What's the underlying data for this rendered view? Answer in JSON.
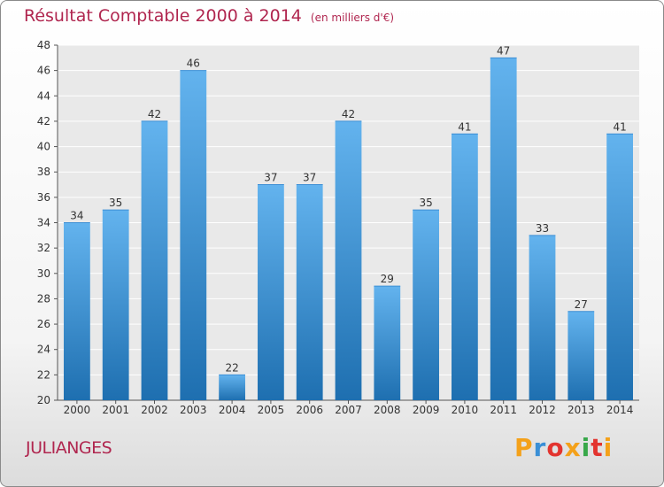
{
  "title": "Résultat Comptable 2000 à 2014",
  "unit": "(en milliers d'€)",
  "city": "JULIANGES",
  "logo": {
    "letters": [
      "P",
      "r",
      "o",
      "x",
      "i",
      "t",
      "i"
    ],
    "colors": [
      "#f4a11a",
      "#3a8fd6",
      "#e3342f",
      "#f4a11a",
      "#38a84a",
      "#e3342f",
      "#f4a11a"
    ]
  },
  "colors": {
    "title": "#b0264f",
    "bar_light": "#63b3ee",
    "bar_dark": "#1e6fb0",
    "plot_bg": "#e9e9e9",
    "grid": "#ffffff"
  },
  "chart_data": {
    "type": "bar",
    "title": "Résultat Comptable 2000 à 2014",
    "subtitle": "(en milliers d'€)",
    "categories": [
      "2000",
      "2001",
      "2002",
      "2003",
      "2004",
      "2005",
      "2006",
      "2007",
      "2008",
      "2009",
      "2010",
      "2011",
      "2012",
      "2013",
      "2014"
    ],
    "values": [
      34,
      35,
      42,
      46,
      22,
      37,
      37,
      42,
      29,
      35,
      41,
      47,
      33,
      27,
      41
    ],
    "ylim": [
      20,
      48
    ],
    "yticks": [
      20,
      22,
      24,
      26,
      28,
      30,
      32,
      34,
      36,
      38,
      40,
      42,
      44,
      46,
      48
    ],
    "grid": true,
    "data_labels": true
  }
}
